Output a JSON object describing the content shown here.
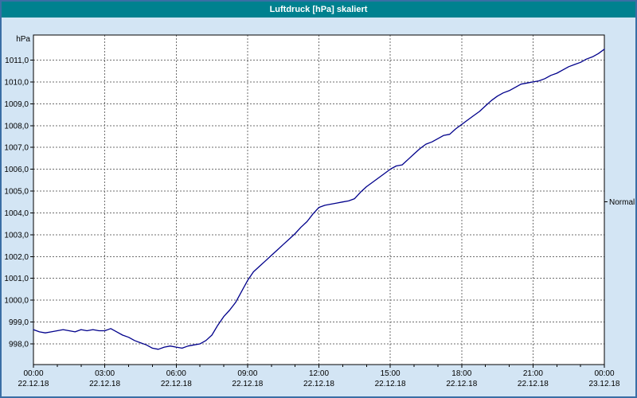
{
  "window": {
    "title": "Luftdruck [hPa] skaliert"
  },
  "colors": {
    "titlebar": "#00818F",
    "title_text": "#FFFFFF",
    "window_bg": "#D3E5F4",
    "border": "#3A6EA5",
    "plot_bg": "#FFFFFF",
    "grid": "#6E6E6E",
    "axis": "#000000",
    "line": "#00008B",
    "label": "#000000"
  },
  "chart_data": {
    "type": "line",
    "title": "Luftdruck [hPa] skaliert",
    "ylabel": "hPa",
    "ylim": [
      997.05,
      1012.15
    ],
    "xlim_hours": [
      0,
      24
    ],
    "grid": "dashed",
    "legend_position": "none",
    "y_ticks": [
      998,
      999,
      1000,
      1001,
      1002,
      1003,
      1004,
      1005,
      1006,
      1007,
      1008,
      1009,
      1010,
      1011
    ],
    "y_tick_labels": [
      "998,0",
      "999,0",
      "1000,0",
      "1001,0",
      "1002,0",
      "1003,0",
      "1004,0",
      "1005,0",
      "1006,0",
      "1007,0",
      "1008,0",
      "1009,0",
      "1010,0",
      "1011,0"
    ],
    "x_ticks": [
      {
        "hour": 0,
        "time": "00:00",
        "date": "22.12.18"
      },
      {
        "hour": 3,
        "time": "03:00",
        "date": "22.12.18"
      },
      {
        "hour": 6,
        "time": "06:00",
        "date": "22.12.18"
      },
      {
        "hour": 9,
        "time": "09:00",
        "date": "22.12.18"
      },
      {
        "hour": 12,
        "time": "12:00",
        "date": "22.12.18"
      },
      {
        "hour": 15,
        "time": "15:00",
        "date": "22.12.18"
      },
      {
        "hour": 18,
        "time": "18:00",
        "date": "22.12.18"
      },
      {
        "hour": 21,
        "time": "21:00",
        "date": "22.12.18"
      },
      {
        "hour": 24,
        "time": "00:00",
        "date": "23.12.18"
      }
    ],
    "normal": {
      "label": "Normal",
      "value": 1004.5
    },
    "series": [
      {
        "name": "Luftdruck",
        "color": "#00008B",
        "points": [
          [
            0.0,
            998.65
          ],
          [
            0.25,
            998.55
          ],
          [
            0.5,
            998.5
          ],
          [
            0.75,
            998.55
          ],
          [
            1.0,
            998.6
          ],
          [
            1.25,
            998.65
          ],
          [
            1.5,
            998.6
          ],
          [
            1.75,
            998.55
          ],
          [
            2.0,
            998.65
          ],
          [
            2.25,
            998.6
          ],
          [
            2.5,
            998.65
          ],
          [
            2.75,
            998.6
          ],
          [
            3.0,
            998.6
          ],
          [
            3.25,
            998.7
          ],
          [
            3.5,
            998.55
          ],
          [
            3.75,
            998.4
          ],
          [
            4.0,
            998.3
          ],
          [
            4.25,
            998.15
          ],
          [
            4.5,
            998.05
          ],
          [
            4.75,
            997.95
          ],
          [
            5.0,
            997.8
          ],
          [
            5.25,
            997.75
          ],
          [
            5.5,
            997.85
          ],
          [
            5.75,
            997.9
          ],
          [
            6.0,
            997.85
          ],
          [
            6.25,
            997.8
          ],
          [
            6.5,
            997.9
          ],
          [
            6.75,
            997.95
          ],
          [
            7.0,
            998.0
          ],
          [
            7.25,
            998.15
          ],
          [
            7.5,
            998.4
          ],
          [
            7.75,
            998.85
          ],
          [
            8.0,
            999.25
          ],
          [
            8.25,
            999.55
          ],
          [
            8.5,
            999.9
          ],
          [
            8.75,
            1000.4
          ],
          [
            9.0,
            1000.9
          ],
          [
            9.25,
            1001.3
          ],
          [
            9.5,
            1001.55
          ],
          [
            9.75,
            1001.8
          ],
          [
            10.0,
            1002.05
          ],
          [
            10.25,
            1002.3
          ],
          [
            10.5,
            1002.55
          ],
          [
            10.75,
            1002.8
          ],
          [
            11.0,
            1003.05
          ],
          [
            11.25,
            1003.35
          ],
          [
            11.5,
            1003.6
          ],
          [
            11.75,
            1003.95
          ],
          [
            12.0,
            1004.25
          ],
          [
            12.25,
            1004.35
          ],
          [
            12.5,
            1004.4
          ],
          [
            12.75,
            1004.45
          ],
          [
            13.0,
            1004.5
          ],
          [
            13.25,
            1004.55
          ],
          [
            13.5,
            1004.65
          ],
          [
            13.75,
            1004.95
          ],
          [
            14.0,
            1005.2
          ],
          [
            14.25,
            1005.4
          ],
          [
            14.5,
            1005.6
          ],
          [
            14.75,
            1005.8
          ],
          [
            15.0,
            1006.0
          ],
          [
            15.25,
            1006.15
          ],
          [
            15.5,
            1006.2
          ],
          [
            15.75,
            1006.45
          ],
          [
            16.0,
            1006.7
          ],
          [
            16.25,
            1006.95
          ],
          [
            16.5,
            1007.15
          ],
          [
            16.75,
            1007.25
          ],
          [
            17.0,
            1007.4
          ],
          [
            17.25,
            1007.55
          ],
          [
            17.5,
            1007.6
          ],
          [
            17.75,
            1007.85
          ],
          [
            18.0,
            1008.05
          ],
          [
            18.25,
            1008.25
          ],
          [
            18.5,
            1008.45
          ],
          [
            18.75,
            1008.65
          ],
          [
            19.0,
            1008.9
          ],
          [
            19.25,
            1009.15
          ],
          [
            19.5,
            1009.35
          ],
          [
            19.75,
            1009.5
          ],
          [
            20.0,
            1009.6
          ],
          [
            20.25,
            1009.75
          ],
          [
            20.5,
            1009.9
          ],
          [
            20.75,
            1009.95
          ],
          [
            21.0,
            1010.0
          ],
          [
            21.25,
            1010.05
          ],
          [
            21.5,
            1010.15
          ],
          [
            21.75,
            1010.3
          ],
          [
            22.0,
            1010.4
          ],
          [
            22.25,
            1010.55
          ],
          [
            22.5,
            1010.7
          ],
          [
            22.75,
            1010.8
          ],
          [
            23.0,
            1010.9
          ],
          [
            23.25,
            1011.05
          ],
          [
            23.5,
            1011.15
          ],
          [
            23.75,
            1011.3
          ],
          [
            24.0,
            1011.5
          ]
        ]
      }
    ]
  }
}
